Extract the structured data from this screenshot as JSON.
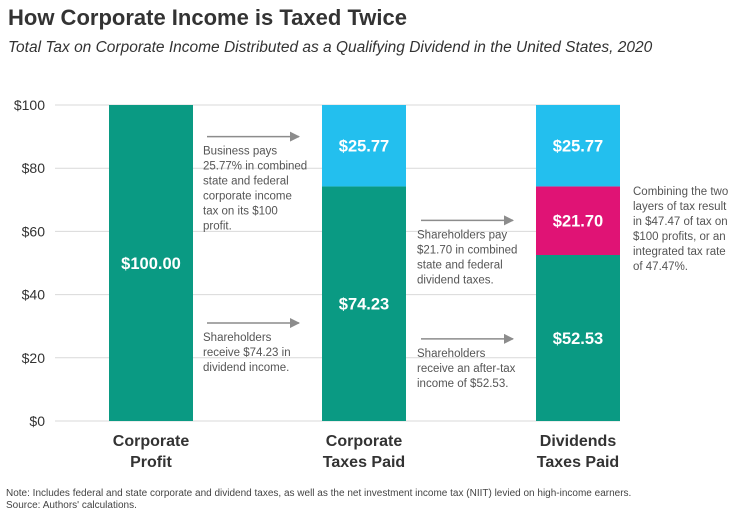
{
  "title": "How Corporate Income is Taxed Twice",
  "subtitle": "Total Tax on Corporate Income Distributed as a Qualifying Dividend in the United States, 2020",
  "notes": {
    "note": "Note: Includes federal and state corporate and dividend taxes, as well as the net investment income tax (NIIT) levied on high-income earners.",
    "source": "Source: Authors' calculations."
  },
  "colors": {
    "green": "#0a9a83",
    "blue": "#23bfee",
    "pink": "#e01375",
    "grid": "#d9d9d9",
    "arrow": "#8c8c8c",
    "annotation": "#555555",
    "text": "#333333"
  },
  "chart_data": {
    "type": "bar",
    "stacked": true,
    "categories": [
      [
        "Corporate",
        "Profit"
      ],
      [
        "Corporate",
        "Taxes Paid"
      ],
      [
        "Dividends",
        "Taxes Paid"
      ]
    ],
    "series": [
      {
        "name": "After-tax income",
        "color": "#0a9a83",
        "values": [
          100.0,
          74.23,
          52.53
        ],
        "labels": [
          "$100.00",
          "$74.23",
          "$52.53"
        ]
      },
      {
        "name": "Dividend taxes",
        "color": "#e01375",
        "values": [
          0,
          0,
          21.7
        ],
        "labels": [
          "",
          "",
          "$21.70"
        ]
      },
      {
        "name": "Corporate income tax",
        "color": "#23bfee",
        "values": [
          0,
          25.77,
          25.77
        ],
        "labels": [
          "",
          "$25.77",
          "$25.77"
        ]
      }
    ],
    "ylim": [
      0,
      100
    ],
    "yticks": [
      0,
      20,
      40,
      60,
      80,
      100
    ],
    "ytick_labels": [
      "$0",
      "$20",
      "$40",
      "$60",
      "$80",
      "$100"
    ],
    "grid": true,
    "annotations": [
      {
        "lines": [
          "Business pays",
          "25.77% in combined",
          "state and federal",
          "corporate income",
          "tax on its $100",
          "profit."
        ],
        "arrow": true,
        "gap": 0,
        "level": 90
      },
      {
        "lines": [
          "Shareholders",
          "receive $74.23 in",
          "dividend income."
        ],
        "arrow": true,
        "gap": 0,
        "level": 31
      },
      {
        "lines": [
          "Shareholders pay",
          "$21.70 in combined",
          "state and federal",
          "dividend taxes."
        ],
        "arrow": true,
        "gap": 1,
        "level": 63.5
      },
      {
        "lines": [
          "Shareholders",
          "receive an after-tax",
          "income of $52.53."
        ],
        "arrow": true,
        "gap": 1,
        "level": 26
      },
      {
        "lines": [
          "Combining the two",
          "layers of tax result",
          "in $47.47 of tax on",
          "$100 profits, or an",
          "integrated tax rate",
          "of 47.47%."
        ],
        "arrow": false,
        "gap": 2,
        "level": 74
      }
    ]
  }
}
